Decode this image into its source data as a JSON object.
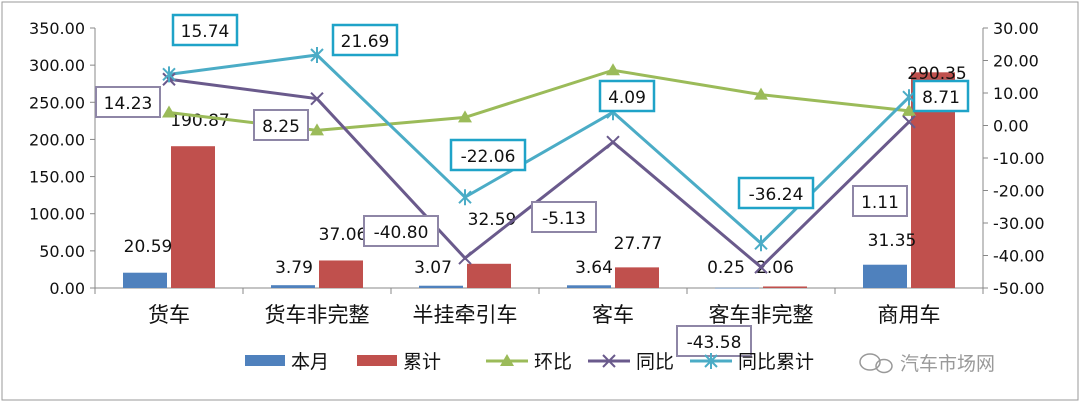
{
  "chart_data": {
    "type": "bar",
    "categories": [
      "货车",
      "货车非完整",
      "半挂牵引车",
      "客车",
      "客车非完整",
      "商用车"
    ],
    "y_left": {
      "min": 0,
      "max": 350,
      "step": 50,
      "tick_labels": [
        "0.00",
        "50.00",
        "100.00",
        "150.00",
        "200.00",
        "250.00",
        "300.00",
        "350.00"
      ]
    },
    "y_right": {
      "min": -50,
      "max": 30,
      "step": 10,
      "tick_labels": [
        "-50.00",
        "-40.00",
        "-30.00",
        "-20.00",
        "-10.00",
        "0.00",
        "10.00",
        "20.00",
        "30.00"
      ]
    },
    "series": [
      {
        "name": "本月",
        "kind": "bar",
        "axis": "left",
        "color": "#4F81BD",
        "values": [
          20.59,
          3.79,
          3.07,
          3.64,
          0.25,
          31.35
        ],
        "labels": [
          "20.59",
          "3.79",
          "3.07",
          "3.64",
          "0.25",
          "31.35"
        ]
      },
      {
        "name": "累计",
        "kind": "bar",
        "axis": "left",
        "color": "#C0504D",
        "values": [
          190.87,
          37.06,
          32.59,
          27.77,
          2.06,
          290.35
        ],
        "labels": [
          "190.87",
          "37.06",
          "32.59",
          "27.77",
          "2.06",
          "290.35"
        ]
      },
      {
        "name": "环比",
        "kind": "line",
        "marker": "triangle",
        "axis": "right",
        "color": "#9BBB59",
        "values": [
          4,
          -1.5,
          2.5,
          17,
          9.5,
          4.5
        ]
      },
      {
        "name": "同比",
        "kind": "line",
        "marker": "x",
        "axis": "right",
        "color": "#6A5A8C",
        "values": [
          14.23,
          8.25,
          -40.8,
          -5.13,
          -43.58,
          1.11
        ],
        "labels": [
          "14.23",
          "8.25",
          "-40.80",
          "-5.13",
          "-43.58",
          "1.11"
        ]
      },
      {
        "name": "同比累计",
        "kind": "line",
        "marker": "star",
        "axis": "right",
        "color": "#4BACC6",
        "values": [
          15.74,
          21.69,
          -22.06,
          4.09,
          -36.24,
          8.71
        ],
        "labels": [
          "15.74",
          "21.69",
          "-22.06",
          "4.09",
          "-36.24",
          "8.71"
        ]
      }
    ],
    "legend_position": "bottom",
    "grid": false
  },
  "watermark": "汽车市场网"
}
